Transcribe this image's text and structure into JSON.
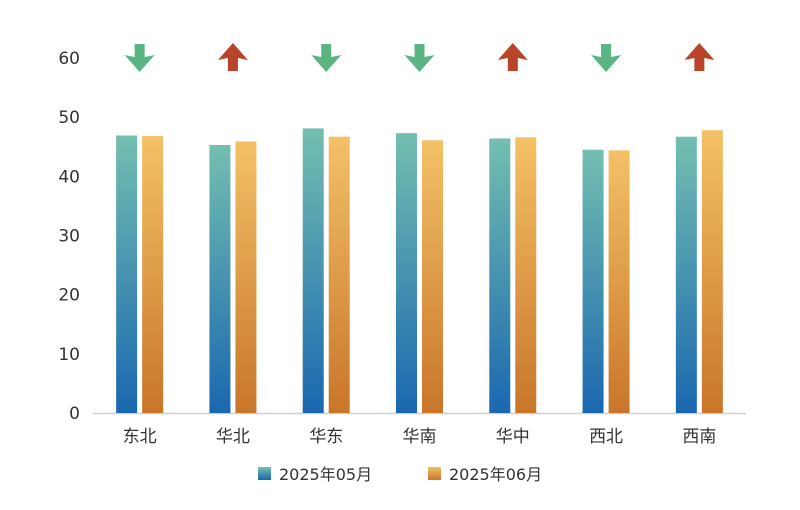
{
  "chart_data": {
    "type": "bar",
    "categories": [
      "东北",
      "华北",
      "华东",
      "华南",
      "华中",
      "西北",
      "西南"
    ],
    "series": [
      {
        "name": "2025年05月",
        "values": [
          46.9,
          45.3,
          48.1,
          47.3,
          46.4,
          44.5,
          46.7
        ]
      },
      {
        "name": "2025年06月",
        "values": [
          46.8,
          45.9,
          46.7,
          46.1,
          46.6,
          44.4,
          47.8
        ]
      }
    ],
    "trend": [
      "down",
      "up",
      "down",
      "down",
      "up",
      "down",
      "up"
    ],
    "ylim": [
      0,
      60
    ],
    "yticks": [
      "0",
      "10",
      "20",
      "30",
      "40",
      "50",
      "60"
    ],
    "grid": false,
    "legend_position": "bottom",
    "colors": {
      "series1_top": "#74bfb0",
      "series1_bottom": "#1a67b0",
      "series2_top": "#f3c167",
      "series2_bottom": "#c9762a",
      "arrow_up": "#b8452a",
      "arrow_down": "#5bb583",
      "axis": "#d0d0d0"
    }
  }
}
